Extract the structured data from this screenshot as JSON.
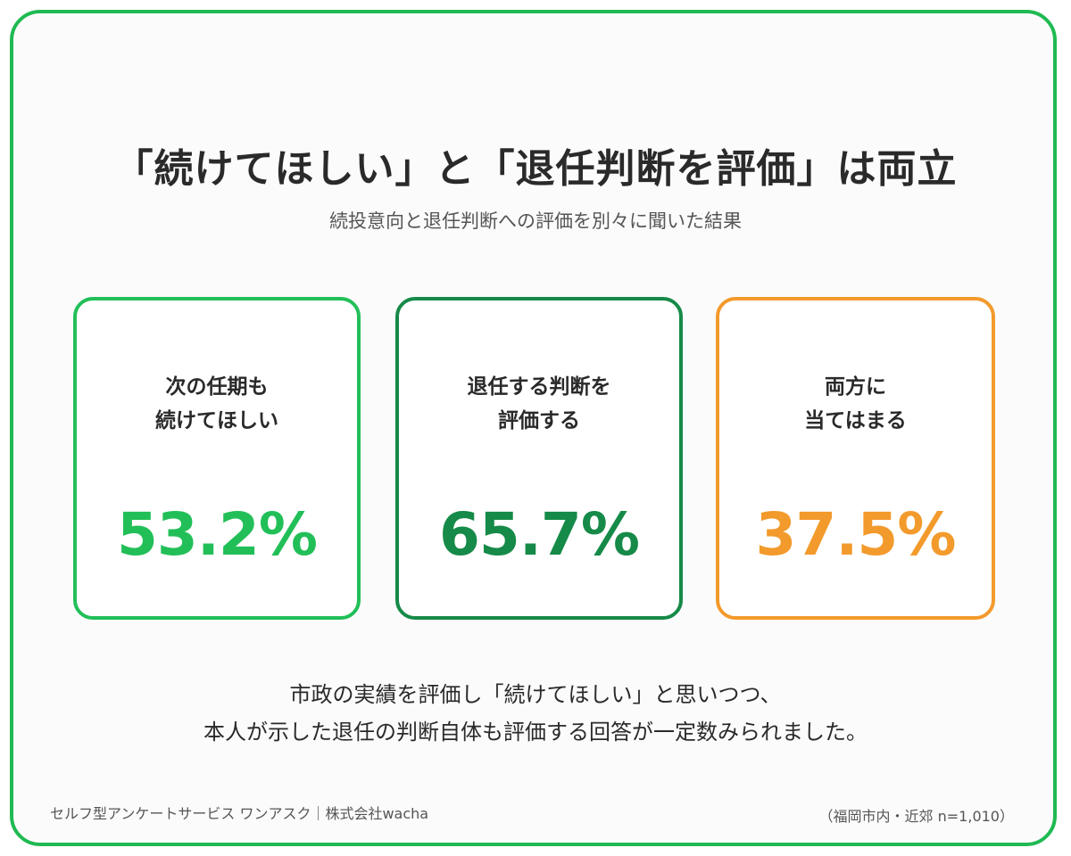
{
  "title": "「続けてほしい」と「退任判断を評価」は両立",
  "subtitle": "続投意向と退任判断への評価を別々に聞いた結果",
  "cards": [
    {
      "label_line1": "次の任期も",
      "label_line2": "続けてほしい",
      "value": "53.2%",
      "color": "#22bf58"
    },
    {
      "label_line1": "退任する判断を",
      "label_line2": "評価する",
      "value": "65.7%",
      "color": "#168a48"
    },
    {
      "label_line1": "両方に",
      "label_line2": "当てはまる",
      "value": "37.5%",
      "color": "#f39a2c"
    }
  ],
  "body": {
    "line1": "市政の実績を評価し「続けてほしい」と思いつつ、",
    "line2": "本人が示した退任の判断自体も評価する回答が一定数みられました。"
  },
  "footer": {
    "source": "セルフ型アンケートサービス ワンアスク｜株式会社wacha",
    "sample": "（福岡市内・近郊 n=1,010）"
  },
  "colors": {
    "frame_border": "#1fba52",
    "text": "#2a2a2a"
  }
}
